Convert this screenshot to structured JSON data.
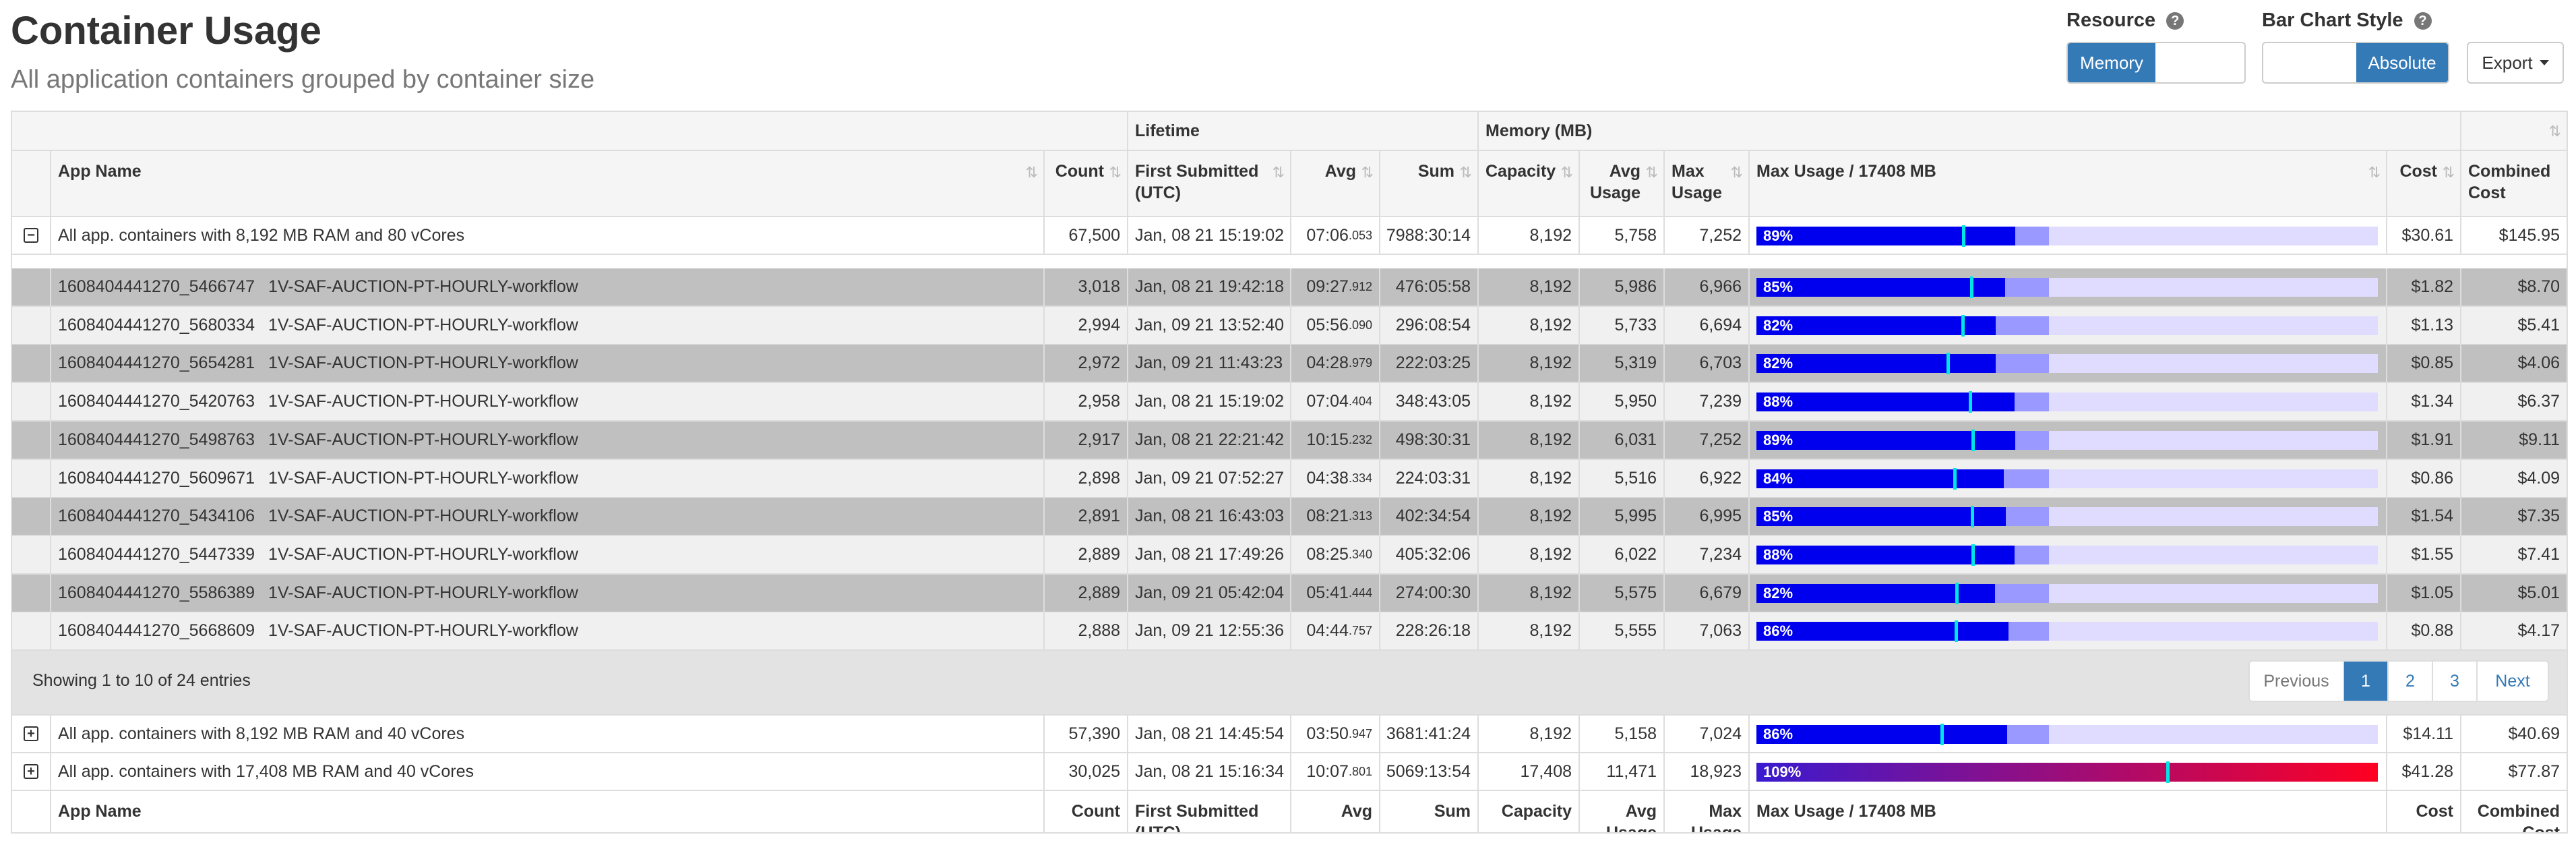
{
  "header": {
    "title": "Container Usage",
    "subtitle": "All application containers grouped by container size",
    "resource_label": "Resource",
    "resource_options": [
      "Memory",
      ""
    ],
    "bar_style_label": "Bar Chart Style",
    "bar_style_options": [
      "",
      "Absolute"
    ],
    "export_label": "Export",
    "help": "?"
  },
  "table": {
    "group_headers": {
      "lifetime": "Lifetime",
      "memory": "Memory (MB)"
    },
    "columns": {
      "app_name": "App Name",
      "count": "Count",
      "first_submitted": "First Submitted (UTC)",
      "avg": "Avg",
      "sum": "Sum",
      "capacity": "Capacity",
      "avg_usage": "Avg Usage",
      "max_usage": "Max Usage",
      "max_usage_bar": "Max Usage / 17408 MB",
      "cost": "Cost",
      "combined_cost": "Combined Cost"
    },
    "sort_icon": "⇅",
    "groups": [
      {
        "icon": "−",
        "name": "All app. containers with 8,192 MB RAM and 80 vCores",
        "count": "67,500",
        "first": "Jan, 08 21 15:19:02",
        "avg_main": "07:06",
        "avg_ms": ".053",
        "sum": "7988:30:14",
        "capacity": "8,192",
        "avg_usage": "5,758",
        "max_usage": "7,252",
        "pct_label": "89%",
        "cost": "$30.61",
        "combined": "$145.95"
      },
      {
        "icon": "+",
        "name": "All app. containers with 8,192 MB RAM and 40 vCores",
        "count": "57,390",
        "first": "Jan, 08 21 14:45:54",
        "avg_main": "03:50",
        "avg_ms": ".947",
        "sum": "3681:41:24",
        "capacity": "8,192",
        "avg_usage": "5,158",
        "max_usage": "7,024",
        "pct_label": "86%",
        "cost": "$14.11",
        "combined": "$40.69"
      },
      {
        "icon": "+",
        "name": "All app. containers with 17,408 MB RAM and 40 vCores",
        "count": "30,025",
        "first": "Jan, 08 21 15:16:34",
        "avg_main": "10:07",
        "avg_ms": ".801",
        "sum": "5069:13:54",
        "capacity": "17,408",
        "avg_usage": "11,471",
        "max_usage": "18,923",
        "pct_label": "109%",
        "cost": "$41.28",
        "combined": "$77.87"
      }
    ],
    "rows": [
      {
        "id": "1608404441270_5466747",
        "name": "1V-SAF-AUCTION-PT-HOURLY-workflow",
        "count": "3,018",
        "first": "Jan, 08 21 19:42:18",
        "avg_main": "09:27",
        "avg_ms": ".912",
        "sum": "476:05:58",
        "capacity": "8,192",
        "avg_usage": "5,986",
        "max_usage": "6,966",
        "pct_label": "85%",
        "cost": "$1.82",
        "combined": "$8.70"
      },
      {
        "id": "1608404441270_5680334",
        "name": "1V-SAF-AUCTION-PT-HOURLY-workflow",
        "count": "2,994",
        "first": "Jan, 09 21 13:52:40",
        "avg_main": "05:56",
        "avg_ms": ".090",
        "sum": "296:08:54",
        "capacity": "8,192",
        "avg_usage": "5,733",
        "max_usage": "6,694",
        "pct_label": "82%",
        "cost": "$1.13",
        "combined": "$5.41"
      },
      {
        "id": "1608404441270_5654281",
        "name": "1V-SAF-AUCTION-PT-HOURLY-workflow",
        "count": "2,972",
        "first": "Jan, 09 21 11:43:23",
        "avg_main": "04:28",
        "avg_ms": ".979",
        "sum": "222:03:25",
        "capacity": "8,192",
        "avg_usage": "5,319",
        "max_usage": "6,703",
        "pct_label": "82%",
        "cost": "$0.85",
        "combined": "$4.06"
      },
      {
        "id": "1608404441270_5420763",
        "name": "1V-SAF-AUCTION-PT-HOURLY-workflow",
        "count": "2,958",
        "first": "Jan, 08 21 15:19:02",
        "avg_main": "07:04",
        "avg_ms": ".404",
        "sum": "348:43:05",
        "capacity": "8,192",
        "avg_usage": "5,950",
        "max_usage": "7,239",
        "pct_label": "88%",
        "cost": "$1.34",
        "combined": "$6.37"
      },
      {
        "id": "1608404441270_5498763",
        "name": "1V-SAF-AUCTION-PT-HOURLY-workflow",
        "count": "2,917",
        "first": "Jan, 08 21 22:21:42",
        "avg_main": "10:15",
        "avg_ms": ".232",
        "sum": "498:30:31",
        "capacity": "8,192",
        "avg_usage": "6,031",
        "max_usage": "7,252",
        "pct_label": "89%",
        "cost": "$1.91",
        "combined": "$9.11"
      },
      {
        "id": "1608404441270_5609671",
        "name": "1V-SAF-AUCTION-PT-HOURLY-workflow",
        "count": "2,898",
        "first": "Jan, 09 21 07:52:27",
        "avg_main": "04:38",
        "avg_ms": ".334",
        "sum": "224:03:31",
        "capacity": "8,192",
        "avg_usage": "5,516",
        "max_usage": "6,922",
        "pct_label": "84%",
        "cost": "$0.86",
        "combined": "$4.09"
      },
      {
        "id": "1608404441270_5434106",
        "name": "1V-SAF-AUCTION-PT-HOURLY-workflow",
        "count": "2,891",
        "first": "Jan, 08 21 16:43:03",
        "avg_main": "08:21",
        "avg_ms": ".313",
        "sum": "402:34:54",
        "capacity": "8,192",
        "avg_usage": "5,995",
        "max_usage": "6,995",
        "pct_label": "85%",
        "cost": "$1.54",
        "combined": "$7.35"
      },
      {
        "id": "1608404441270_5447339",
        "name": "1V-SAF-AUCTION-PT-HOURLY-workflow",
        "count": "2,889",
        "first": "Jan, 08 21 17:49:26",
        "avg_main": "08:25",
        "avg_ms": ".340",
        "sum": "405:32:06",
        "capacity": "8,192",
        "avg_usage": "6,022",
        "max_usage": "7,234",
        "pct_label": "88%",
        "cost": "$1.55",
        "combined": "$7.41"
      },
      {
        "id": "1608404441270_5586389",
        "name": "1V-SAF-AUCTION-PT-HOURLY-workflow",
        "count": "2,889",
        "first": "Jan, 09 21 05:42:04",
        "avg_main": "05:41",
        "avg_ms": ".444",
        "sum": "274:00:30",
        "capacity": "8,192",
        "avg_usage": "5,575",
        "max_usage": "6,679",
        "pct_label": "82%",
        "cost": "$1.05",
        "combined": "$5.01"
      },
      {
        "id": "1608404441270_5668609",
        "name": "1V-SAF-AUCTION-PT-HOURLY-workflow",
        "count": "2,888",
        "first": "Jan, 09 21 12:55:36",
        "avg_main": "04:44",
        "avg_ms": ".757",
        "sum": "228:26:18",
        "capacity": "8,192",
        "avg_usage": "5,555",
        "max_usage": "7,063",
        "pct_label": "86%",
        "cost": "$0.88",
        "combined": "$4.17"
      }
    ],
    "footer_info": "Showing 1 to 10 of 24 entries",
    "pagination": [
      "Previous",
      "1",
      "2",
      "3",
      "Next"
    ],
    "pagination_active": "1",
    "bar_scale_max_mb": 17408
  },
  "colors": {
    "accent": "#337ab7",
    "bar_fill": "#0000ee",
    "bar_capacity": "#9999ff",
    "bar_track": "#e0dcff",
    "bar_avg_marker": "#00e5e5",
    "row_dark": "#c0c0c0",
    "row_light": "#f0f0f0",
    "overflow_start": "#3a1ad0",
    "overflow_end": "#ff0022"
  }
}
